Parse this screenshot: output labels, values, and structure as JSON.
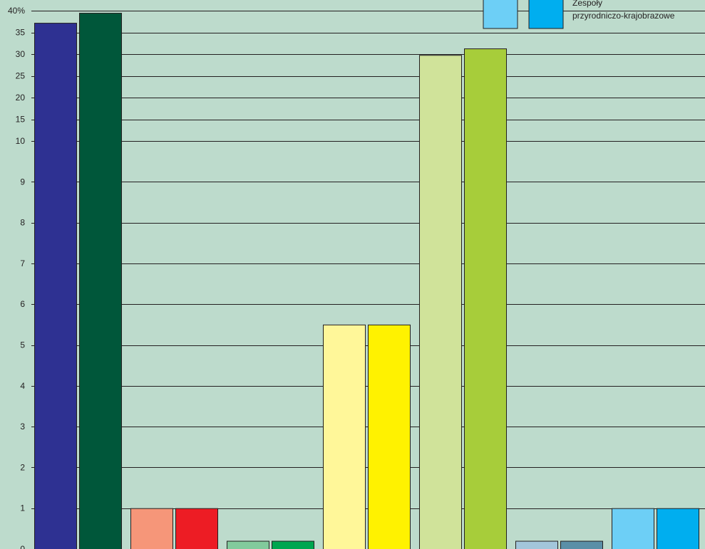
{
  "chart_data": {
    "type": "bar",
    "title": "",
    "xlabel": "",
    "ylabel": "",
    "y_scale": "broken: 0–10 linear, 10–40 compressed",
    "y_ticks": [
      {
        "value": 0,
        "label": "0"
      },
      {
        "value": 1,
        "label": "1"
      },
      {
        "value": 2,
        "label": "2"
      },
      {
        "value": 3,
        "label": "3"
      },
      {
        "value": 4,
        "label": "4"
      },
      {
        "value": 5,
        "label": "5"
      },
      {
        "value": 6,
        "label": "6"
      },
      {
        "value": 7,
        "label": "7"
      },
      {
        "value": 8,
        "label": "8"
      },
      {
        "value": 9,
        "label": "9"
      },
      {
        "value": 10,
        "label": "10"
      },
      {
        "value": 15,
        "label": "15"
      },
      {
        "value": 20,
        "label": "20"
      },
      {
        "value": 25,
        "label": "25"
      },
      {
        "value": 30,
        "label": "30"
      },
      {
        "value": 35,
        "label": "35"
      },
      {
        "value": 40,
        "label": "40%"
      }
    ],
    "ylim": [
      0,
      40
    ],
    "grid": true,
    "groups": [
      {
        "bars": [
          {
            "value": 37.2,
            "color": "#2e3192"
          },
          {
            "value": 39.5,
            "color": "#00573a"
          }
        ]
      },
      {
        "bars": [
          {
            "value": 1.0,
            "color": "#f69679"
          },
          {
            "value": 1.0,
            "color": "#ed1c24"
          }
        ]
      },
      {
        "bars": [
          {
            "value": 0.2,
            "color": "#82ca9c"
          },
          {
            "value": 0.2,
            "color": "#00a650"
          }
        ]
      },
      {
        "bars": [
          {
            "value": 5.5,
            "color": "#fff799"
          },
          {
            "value": 5.5,
            "color": "#fff200"
          }
        ]
      },
      {
        "bars": [
          {
            "value": 29.8,
            "color": "#d0e39a"
          },
          {
            "value": 31.3,
            "color": "#a7cd3a"
          }
        ]
      },
      {
        "bars": [
          {
            "value": 0.2,
            "color": "#a3c6db"
          },
          {
            "value": 0.2,
            "color": "#5b8fa7"
          }
        ]
      },
      {
        "bars": [
          {
            "value": 1.0,
            "color": "#6dcff6"
          },
          {
            "value": 1.0,
            "color": "#00aeef"
          }
        ]
      }
    ],
    "legend": {
      "placement": "top-right",
      "swatch_colors": [
        "#6dcff6",
        "#00aeef"
      ],
      "label_lines": [
        "Zespoły",
        "przyrodniczo-krajobrazowe"
      ]
    }
  }
}
